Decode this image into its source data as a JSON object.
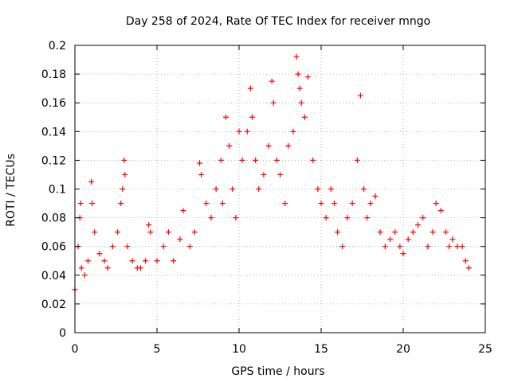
{
  "chart_data": {
    "type": "scatter",
    "title": "Day 258 of 2024, Rate Of TEC Index for receiver mngo",
    "xlabel": "GPS time / hours",
    "ylabel": "ROTI / TECUs",
    "xlim": [
      0,
      25
    ],
    "ylim": [
      0,
      0.2
    ],
    "xticks": [
      0,
      5,
      10,
      15,
      20,
      25
    ],
    "yticks": [
      0,
      0.02,
      0.04,
      0.06,
      0.08,
      0.1,
      0.12,
      0.14,
      0.16,
      0.18,
      0.2
    ],
    "xtick_labels": [
      "0",
      "5",
      "10",
      "15",
      "20",
      "25"
    ],
    "ytick_labels": [
      "0",
      "0.02",
      "0.04",
      "0.06",
      "0.08",
      "0.1",
      "0.12",
      "0.14",
      "0.16",
      "0.18",
      "0.2"
    ],
    "grid": true,
    "marker": "+",
    "marker_color": "#ff0000",
    "series": [
      {
        "name": "ROTI",
        "x": [
          0.0,
          0.2,
          0.3,
          0.35,
          0.4,
          0.6,
          0.8,
          1.0,
          1.05,
          1.2,
          1.5,
          1.8,
          2.0,
          2.3,
          2.6,
          2.8,
          2.9,
          3.0,
          3.05,
          3.2,
          3.5,
          3.8,
          4.0,
          4.3,
          4.5,
          4.6,
          5.0,
          5.4,
          5.7,
          6.0,
          6.4,
          6.6,
          7.0,
          7.3,
          7.6,
          7.7,
          8.0,
          8.3,
          8.6,
          8.9,
          9.0,
          9.2,
          9.4,
          9.6,
          9.8,
          10.0,
          10.2,
          10.5,
          10.7,
          10.8,
          11.0,
          11.2,
          11.5,
          11.8,
          12.0,
          12.1,
          12.3,
          12.5,
          12.8,
          13.0,
          13.3,
          13.5,
          13.6,
          13.7,
          13.8,
          14.0,
          14.2,
          14.5,
          14.8,
          15.0,
          15.3,
          15.6,
          15.8,
          16.0,
          16.3,
          16.6,
          16.9,
          17.2,
          17.4,
          17.6,
          17.8,
          18.0,
          18.3,
          18.6,
          18.9,
          19.2,
          19.5,
          19.8,
          20.0,
          20.3,
          20.6,
          20.9,
          21.2,
          21.5,
          21.8,
          22.0,
          22.3,
          22.6,
          22.8,
          23.0,
          23.3,
          23.6,
          23.8,
          24.0
        ],
        "y": [
          0.03,
          0.06,
          0.08,
          0.09,
          0.045,
          0.04,
          0.05,
          0.105,
          0.09,
          0.07,
          0.055,
          0.05,
          0.045,
          0.06,
          0.07,
          0.09,
          0.1,
          0.12,
          0.11,
          0.06,
          0.05,
          0.045,
          0.045,
          0.05,
          0.075,
          0.07,
          0.05,
          0.06,
          0.07,
          0.05,
          0.065,
          0.085,
          0.06,
          0.07,
          0.118,
          0.11,
          0.09,
          0.08,
          0.1,
          0.12,
          0.09,
          0.15,
          0.13,
          0.1,
          0.08,
          0.14,
          0.12,
          0.14,
          0.17,
          0.15,
          0.12,
          0.1,
          0.11,
          0.13,
          0.175,
          0.16,
          0.12,
          0.11,
          0.09,
          0.13,
          0.14,
          0.192,
          0.18,
          0.17,
          0.16,
          0.15,
          0.178,
          0.12,
          0.1,
          0.09,
          0.08,
          0.1,
          0.09,
          0.07,
          0.06,
          0.08,
          0.09,
          0.12,
          0.165,
          0.1,
          0.08,
          0.09,
          0.095,
          0.07,
          0.06,
          0.065,
          0.07,
          0.06,
          0.055,
          0.065,
          0.07,
          0.075,
          0.08,
          0.06,
          0.07,
          0.09,
          0.085,
          0.07,
          0.06,
          0.065,
          0.06,
          0.06,
          0.05,
          0.045
        ]
      }
    ]
  }
}
